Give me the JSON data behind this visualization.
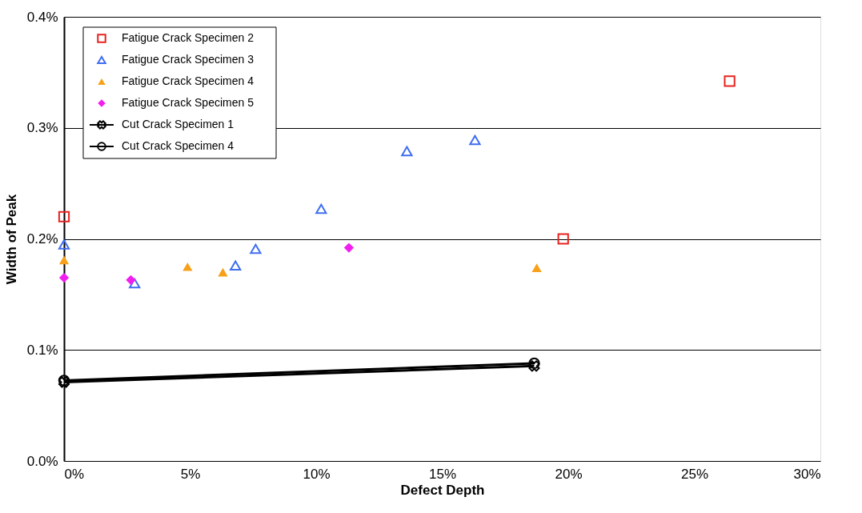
{
  "chart_data": {
    "type": "scatter",
    "xlabel": "Defect Depth",
    "ylabel": "Width of Peak",
    "xlim": [
      0,
      30
    ],
    "xticks": [
      {
        "value": 0,
        "label": "0%"
      },
      {
        "value": 5,
        "label": "5%"
      },
      {
        "value": 10,
        "label": "10%"
      },
      {
        "value": 15,
        "label": "15%"
      },
      {
        "value": 20,
        "label": "20%"
      },
      {
        "value": 25,
        "label": "25%"
      },
      {
        "value": 30,
        "label": "30%"
      }
    ],
    "ylim": [
      0,
      0.4
    ],
    "yticks": [
      {
        "value": 0,
        "label": "0.0%"
      },
      {
        "value": 0.1,
        "label": "0.1%"
      },
      {
        "value": 0.2,
        "label": "0.2%"
      },
      {
        "value": 0.3,
        "label": "0.3%"
      },
      {
        "value": 0.4,
        "label": "0.4%"
      }
    ],
    "grid": "y",
    "legend": "top left",
    "series": [
      {
        "name": "Fatigue Crack Specimen 2",
        "color": "#e8231f",
        "marker": "square",
        "x": [
          0,
          19.8,
          26.4
        ],
        "values": [
          0.22,
          0.2,
          0.342
        ]
      },
      {
        "name": "Fatigue Crack Specimen 3",
        "color": "#3f6ef0",
        "marker": "triangle",
        "x": [
          0,
          2.8,
          6.8,
          7.6,
          10.2,
          13.6,
          16.3
        ],
        "values": [
          0.195,
          0.16,
          0.176,
          0.191,
          0.227,
          0.279,
          0.289
        ]
      },
      {
        "name": "Fatigue Crack Specimen 4",
        "color": "#f7a11a",
        "marker": "triangle",
        "x": [
          0,
          4.9,
          6.3,
          18.75
        ],
        "values": [
          0.181,
          0.175,
          0.17,
          0.174
        ]
      },
      {
        "name": "Fatigue Crack Specimen 5",
        "color": "#f21ef0",
        "marker": "diamond",
        "x": [
          0,
          2.65,
          11.3
        ],
        "values": [
          0.165,
          0.163,
          0.192
        ]
      },
      {
        "name": "Cut Crack Specimen 1",
        "type": "line",
        "color": "#000000",
        "marker": "cross",
        "line_style": "solid",
        "x": [
          0,
          18.65
        ],
        "values": [
          0.071,
          0.0855
        ]
      },
      {
        "name": "Cut Crack Specimen 4",
        "type": "line",
        "color": "#000000",
        "marker": "circle",
        "line_style": "solid",
        "x": [
          0,
          18.65
        ],
        "values": [
          0.0725,
          0.088
        ]
      }
    ]
  }
}
